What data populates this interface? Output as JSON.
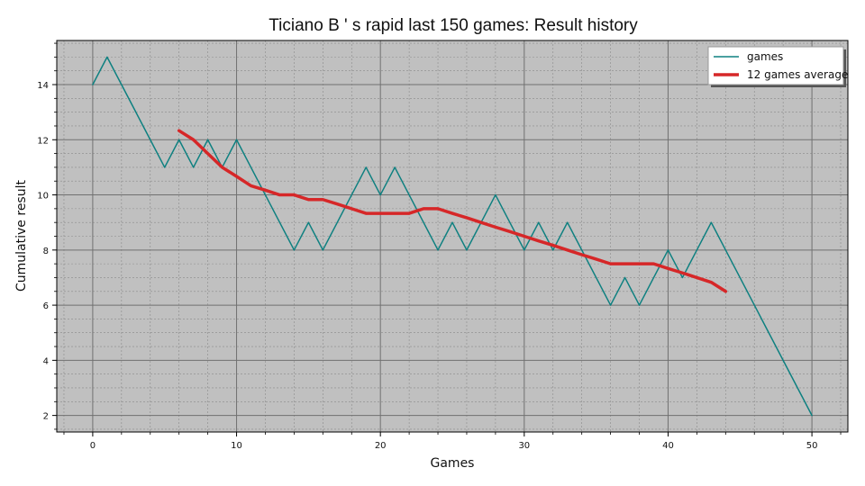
{
  "chart_data": {
    "type": "line",
    "title": "Ticiano B ' s rapid last 150 games: Result history",
    "xlabel": "Games",
    "ylabel": "Cumulative result",
    "xlim": [
      -2.5,
      52.5
    ],
    "ylim": [
      1.4,
      15.6
    ],
    "xticks": [
      0,
      10,
      20,
      30,
      40,
      50
    ],
    "yticks": [
      2,
      4,
      6,
      8,
      10,
      12,
      14
    ],
    "grid": true,
    "legend_position": "top-right",
    "colors": {
      "games": "#0e8080",
      "average": "#d62728",
      "plot_bg": "#c0c0c0"
    },
    "series": [
      {
        "name": "games",
        "x": [
          0,
          1,
          2,
          3,
          4,
          5,
          6,
          7,
          8,
          9,
          10,
          11,
          12,
          13,
          14,
          15,
          16,
          17,
          18,
          19,
          20,
          21,
          22,
          23,
          24,
          25,
          26,
          27,
          28,
          29,
          30,
          31,
          32,
          33,
          34,
          35,
          36,
          37,
          38,
          39,
          40,
          41,
          42,
          43,
          44,
          45,
          46,
          47,
          48,
          49,
          50
        ],
        "values": [
          14,
          15,
          14,
          13,
          12,
          11,
          12,
          11,
          12,
          11,
          12,
          11,
          10,
          9,
          8,
          9,
          8,
          9,
          10,
          11,
          10,
          11,
          10,
          9,
          8,
          9,
          8,
          9,
          10,
          9,
          8,
          9,
          8,
          9,
          8,
          7,
          6,
          7,
          6,
          7,
          8,
          7,
          8,
          9,
          8,
          7,
          6,
          5,
          4,
          3,
          2
        ]
      },
      {
        "name": "12 games average",
        "x": [
          6,
          7,
          8,
          9,
          10,
          11,
          12,
          13,
          14,
          15,
          16,
          17,
          18,
          19,
          20,
          21,
          22,
          23,
          24,
          25,
          26,
          27,
          28,
          29,
          30,
          31,
          32,
          33,
          34,
          35,
          36,
          37,
          38,
          39,
          40,
          41,
          42,
          43,
          44
        ],
        "values": [
          12.33,
          12.0,
          11.5,
          11.0,
          10.67,
          10.33,
          10.17,
          10.0,
          10.0,
          9.83,
          9.83,
          9.67,
          9.5,
          9.33,
          9.33,
          9.33,
          9.33,
          9.5,
          9.5,
          9.33,
          9.17,
          9.0,
          8.83,
          8.67,
          8.5,
          8.33,
          8.17,
          8.0,
          7.83,
          7.67,
          7.5,
          7.5,
          7.5,
          7.5,
          7.33,
          7.17,
          7.0,
          6.83,
          6.5
        ]
      }
    ]
  }
}
